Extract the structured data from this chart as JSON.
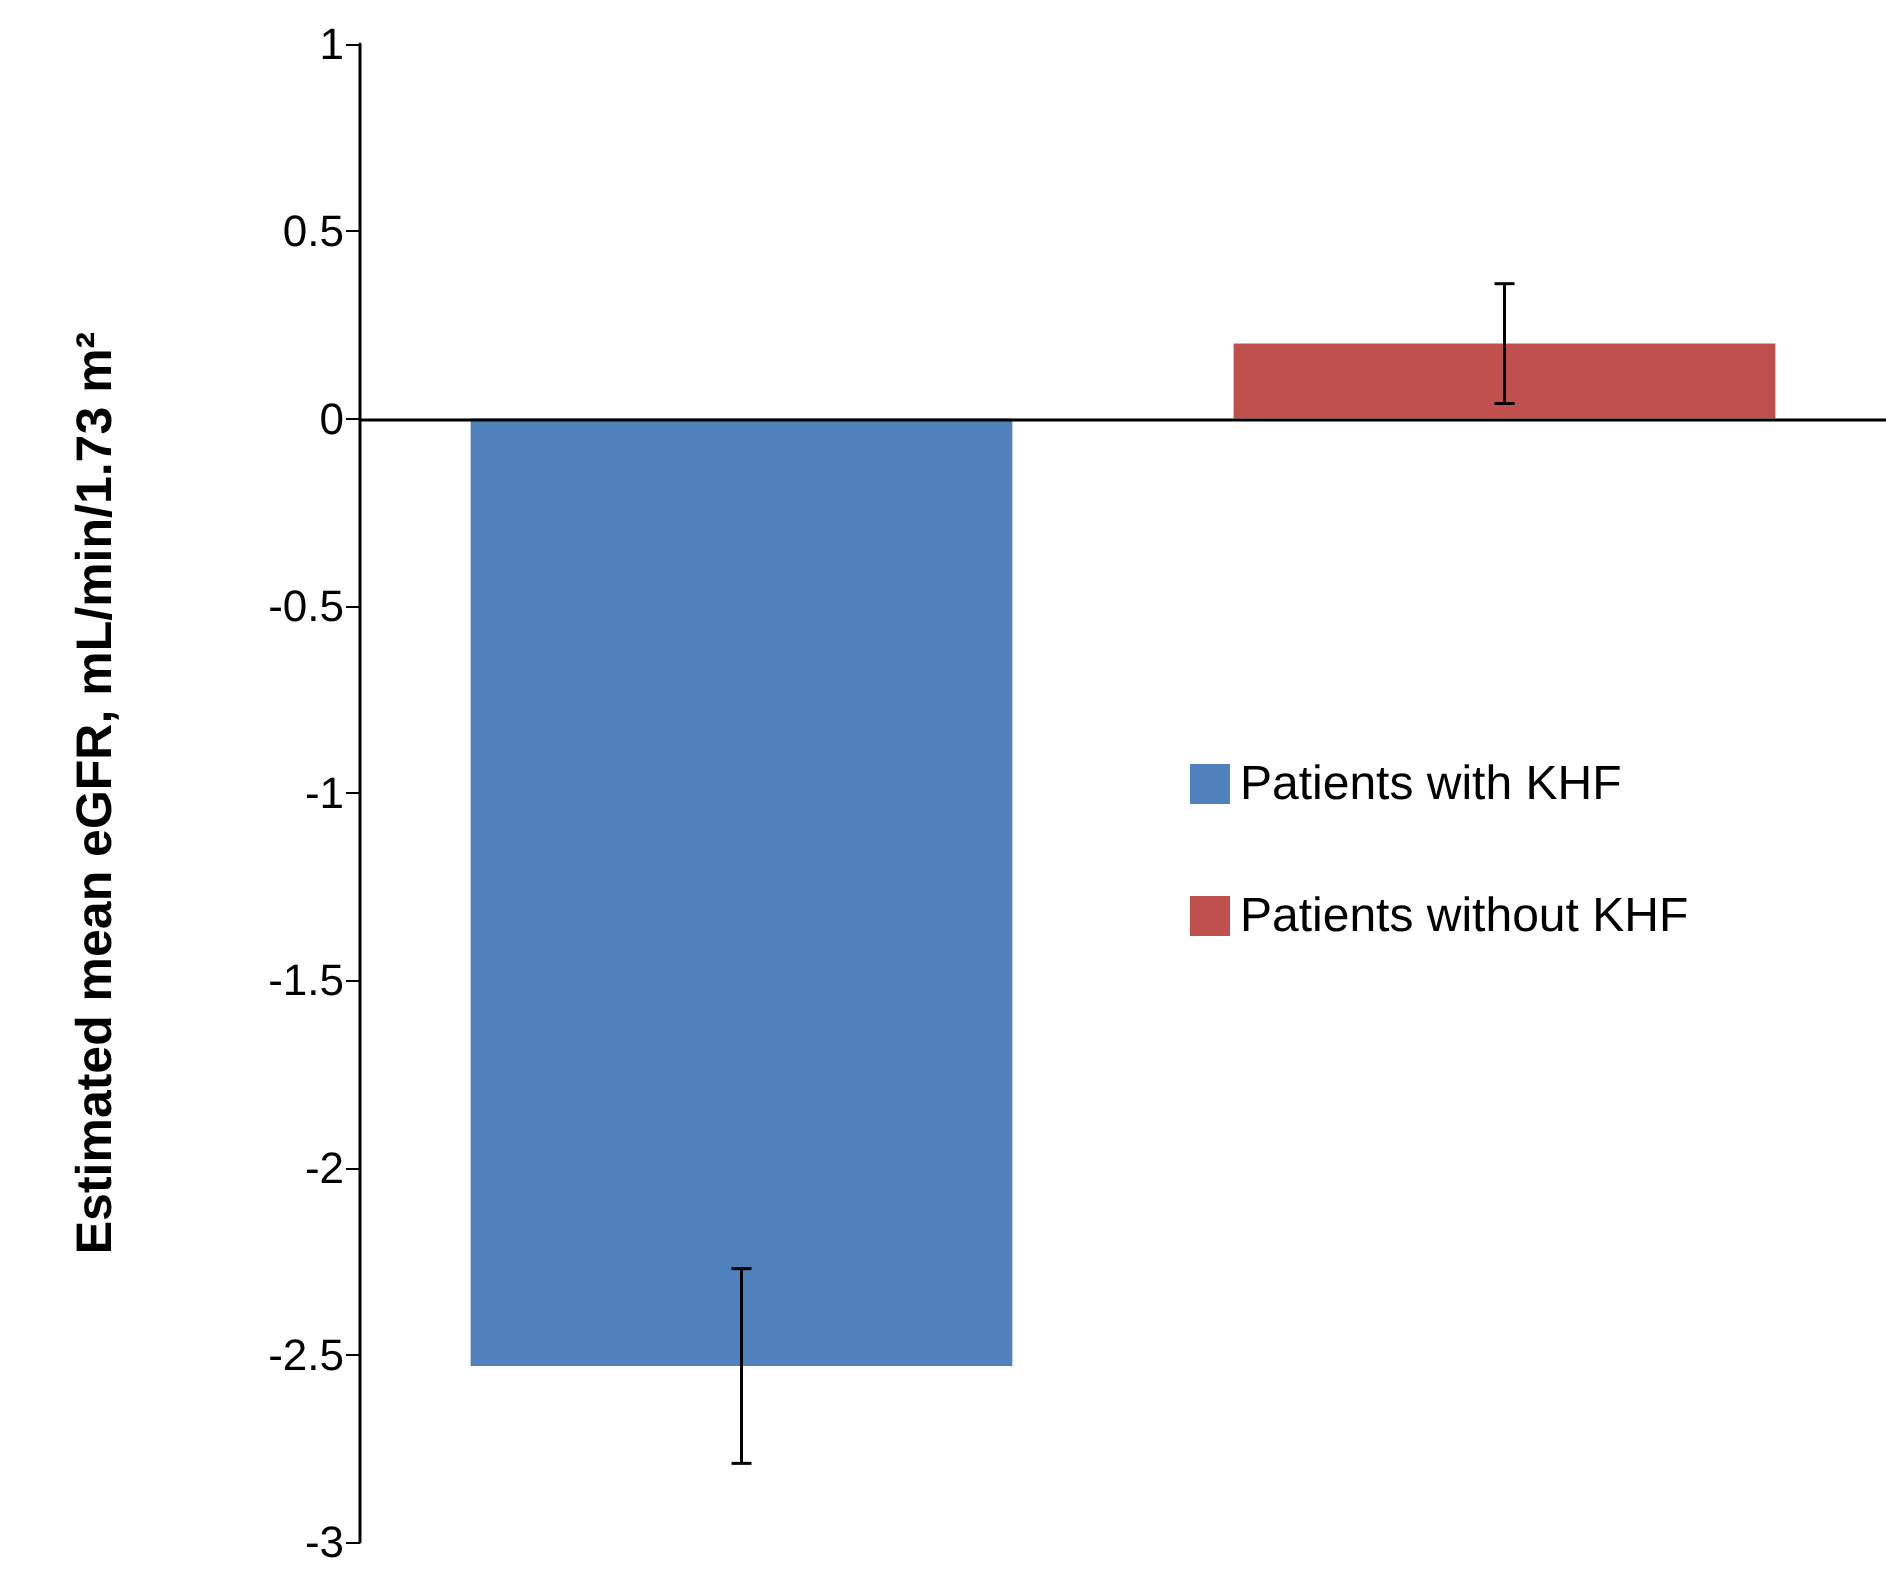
{
  "chart_data": {
    "type": "bar",
    "ylabel": "Estimated mean eGFR, mL/min/1.73 m²",
    "categories": [
      null,
      null
    ],
    "series": [
      {
        "name": "Patients with KHF",
        "color": "#4f81bd",
        "values": [
          -2.53,
          null
        ],
        "errors": [
          0.26,
          null
        ]
      },
      {
        "name": "Patients without KHF",
        "color": "#c0504d",
        "values": [
          null,
          0.2
        ],
        "errors": [
          null,
          0.16
        ]
      }
    ],
    "ylim": [
      -3,
      1
    ],
    "yticks": [
      -3,
      -2.5,
      -2,
      -1.5,
      -1,
      -0.5,
      0,
      0.5,
      1
    ],
    "ref_lines": [
      {
        "axis": "y",
        "value": 0,
        "color": "#000000",
        "line_style": "solid"
      }
    ],
    "grid": false,
    "legend": "right"
  }
}
